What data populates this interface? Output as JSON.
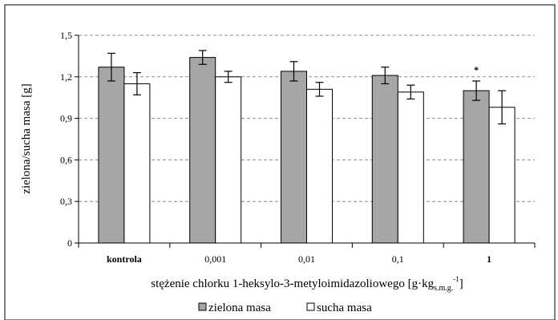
{
  "chart_data": {
    "type": "bar",
    "categories": [
      "kontrola",
      "0,001",
      "0,01",
      "0,1",
      "1"
    ],
    "category_bold": [
      true,
      false,
      false,
      false,
      true
    ],
    "series": [
      {
        "name": "zielona masa",
        "values": [
          1.27,
          1.34,
          1.24,
          1.21,
          1.1
        ],
        "errors": [
          0.1,
          0.05,
          0.07,
          0.06,
          0.07
        ],
        "color": "#a6a6a6"
      },
      {
        "name": "sucha masa",
        "values": [
          1.15,
          1.2,
          1.11,
          1.09,
          0.98
        ],
        "errors": [
          0.08,
          0.04,
          0.05,
          0.05,
          0.12
        ],
        "color": "#ffffff"
      }
    ],
    "significance": [
      {
        "category_index": 4,
        "series_index": 0,
        "label": "*"
      }
    ],
    "yticks": [
      "0",
      "0,3",
      "0,6",
      "0,9",
      "1,2",
      "1,5"
    ],
    "ylim": [
      0,
      1.5
    ],
    "ylabel": "zielona/sucha masa [g]",
    "xlabel_main": "stężenie chlorku 1-heksylo-3-metyloimidazoliowego [g·kg",
    "xlabel_sub": "s.m.g.",
    "xlabel_sup": "-1",
    "xlabel_end": "]",
    "grid": "horizontal-dashed",
    "legend_position": "bottom"
  }
}
